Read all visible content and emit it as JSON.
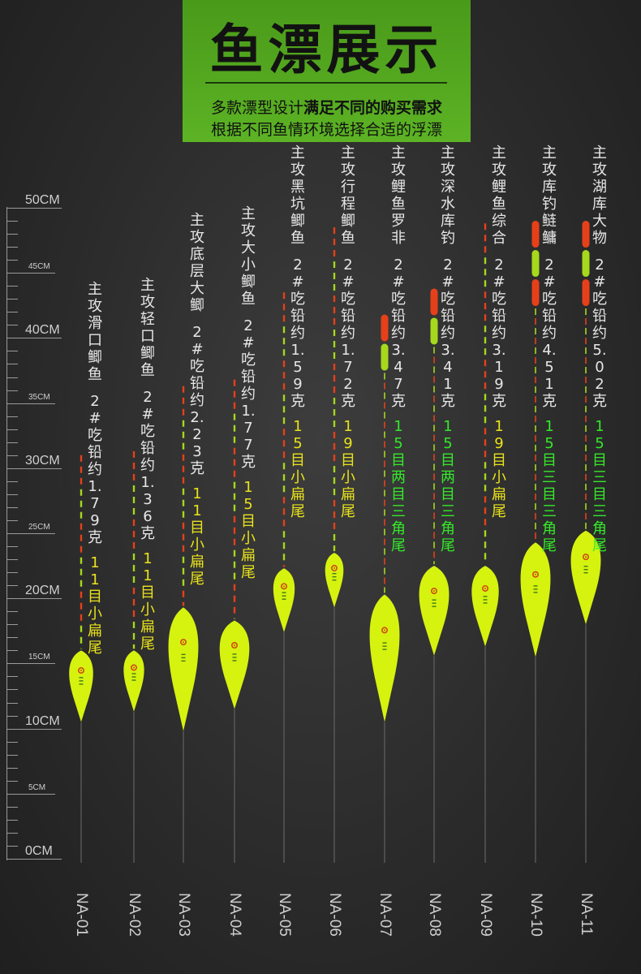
{
  "banner": {
    "title": "鱼漂展示",
    "subtitle_line1_prefix": "多款漂型设计",
    "subtitle_line1_bold": "满足不同的购买需求",
    "subtitle_line2": "根据不同鱼情环境选择合适的浮漂"
  },
  "ruler": {
    "labels": [
      {
        "text": "50CM",
        "cm": 50,
        "major": true
      },
      {
        "text": "45CM",
        "cm": 45,
        "major": false
      },
      {
        "text": "40CM",
        "cm": 40,
        "major": true
      },
      {
        "text": "35CM",
        "cm": 35,
        "major": false
      },
      {
        "text": "30CM",
        "cm": 30,
        "major": true
      },
      {
        "text": "25CM",
        "cm": 25,
        "major": false
      },
      {
        "text": "20CM",
        "cm": 20,
        "major": true
      },
      {
        "text": "15CM",
        "cm": 15,
        "major": false
      },
      {
        "text": "10CM",
        "cm": 10,
        "major": true
      },
      {
        "text": "5CM",
        "cm": 5,
        "major": false
      },
      {
        "text": "0CM",
        "cm": 0,
        "major": true
      }
    ]
  },
  "floats": [
    {
      "model": "NA-01",
      "target": "主攻滑口鲫鱼",
      "weight": "2#吃铅约1.79克",
      "tail": "11目小扁尾",
      "tail_color": "yellow",
      "top_cm": 31,
      "body_top_cm": 16,
      "body_bottom_cm": 10.5,
      "style": "dash"
    },
    {
      "model": "NA-02",
      "target": "主攻轻口鲫鱼",
      "weight": "2#吃铅约1.36克",
      "tail": "11目小扁尾",
      "tail_color": "yellow",
      "top_cm": 31.3,
      "body_top_cm": 16,
      "body_bottom_cm": 11.3,
      "style": "dash"
    },
    {
      "model": "NA-03",
      "target": "主攻底层大鲫",
      "weight": "2#吃铅约2.23克",
      "tail": "11目小扁尾",
      "tail_color": "yellow",
      "top_cm": 36.3,
      "body_top_cm": 19.3,
      "body_bottom_cm": 9.8,
      "style": "dash"
    },
    {
      "model": "NA-04",
      "target": "主攻大小鲫鱼",
      "weight": "2#吃铅约1.77克",
      "tail": "15目小扁尾",
      "tail_color": "yellow",
      "top_cm": 36.8,
      "body_top_cm": 18.3,
      "body_bottom_cm": 11.5,
      "style": "dash"
    },
    {
      "model": "NA-05",
      "target": "主攻黑坑鲫鱼",
      "weight": "2#吃铅约1.59克",
      "tail": "15目小扁尾",
      "tail_color": "yellow",
      "top_cm": 43.5,
      "body_top_cm": 22.3,
      "body_bottom_cm": 17.4,
      "style": "dash"
    },
    {
      "model": "NA-06",
      "target": "主攻行程鲫鱼",
      "weight": "2#吃铅约1.72克",
      "tail": "19目小扁尾",
      "tail_color": "yellow",
      "top_cm": 48.5,
      "body_top_cm": 23.5,
      "body_bottom_cm": 19.3,
      "style": "dash"
    },
    {
      "model": "NA-07",
      "target": "主攻鲤鱼罗非",
      "weight": "2#吃铅约3.47克",
      "tail": "15目两目三角尾",
      "tail_color": "green",
      "top_cm": 41.8,
      "body_top_cm": 20.3,
      "body_bottom_cm": 10.5,
      "style": "segment2"
    },
    {
      "model": "NA-08",
      "target": "主攻深水库钓",
      "weight": "2#吃铅约3.41克",
      "tail": "15目两目三角尾",
      "tail_color": "green",
      "top_cm": 43.8,
      "body_top_cm": 22.5,
      "body_bottom_cm": 15.6,
      "style": "segment2"
    },
    {
      "model": "NA-09",
      "target": "主攻鲤鱼综合",
      "weight": "2#吃铅约3.19克",
      "tail": "19目小扁尾",
      "tail_color": "yellow",
      "top_cm": 48.8,
      "body_top_cm": 22.5,
      "body_bottom_cm": 16.3,
      "style": "dash"
    },
    {
      "model": "NA-10",
      "target": "主攻库钓鲢鳙",
      "weight": "2#吃铅约4.51克",
      "tail": "15目三目三角尾",
      "tail_color": "green",
      "top_cm": 49,
      "body_top_cm": 24.3,
      "body_bottom_cm": 15.5,
      "style": "segment3"
    },
    {
      "model": "NA-11",
      "target": "主攻湖库大物",
      "weight": "2#吃铅约5.02克",
      "tail": "15目三目三角尾",
      "tail_color": "green",
      "top_cm": 49,
      "body_top_cm": 25.2,
      "body_bottom_cm": 18,
      "style": "segment3"
    }
  ],
  "colors": {
    "banner_green": "#5cb324",
    "body_yellow": "#d6f20f",
    "tip_red": "#e6401a",
    "tip_green": "#a6d81c",
    "tail_yellow": "#e8e21c",
    "tail_green": "#35e82a"
  }
}
